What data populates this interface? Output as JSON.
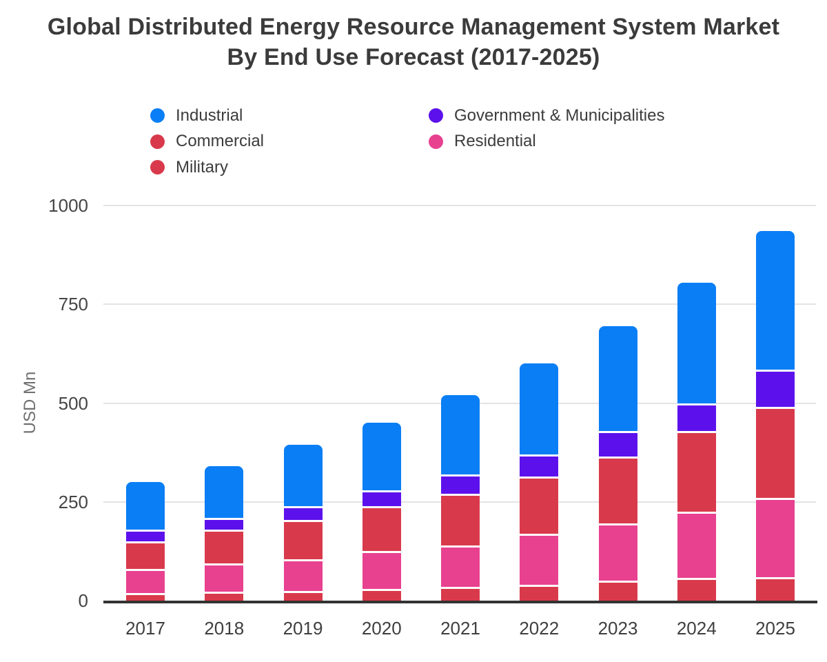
{
  "chart_data": {
    "type": "bar",
    "stacked": true,
    "title": "Global Distributed Energy Resource Management System Market By End Use Forecast (2017-2025)",
    "ylabel": "USD Mn",
    "xlabel": "",
    "ylim": [
      0,
      1000
    ],
    "yticks": [
      0,
      250,
      500,
      750,
      1000
    ],
    "grid": true,
    "legend_position": "top",
    "categories": [
      "2017",
      "2018",
      "2019",
      "2020",
      "2021",
      "2022",
      "2023",
      "2024",
      "2025"
    ],
    "series": [
      {
        "name": "Military",
        "color": "#d93a4b",
        "values": [
          20,
          22,
          25,
          30,
          35,
          40,
          50,
          58,
          60
        ]
      },
      {
        "name": "Residential",
        "color": "#e8418f",
        "values": [
          60,
          73,
          80,
          95,
          105,
          130,
          145,
          167,
          200
        ]
      },
      {
        "name": "Commercial",
        "color": "#d93a4b",
        "values": [
          70,
          85,
          100,
          115,
          130,
          145,
          170,
          205,
          230
        ]
      },
      {
        "name": "Government & Municipalities",
        "color": "#5c11ec",
        "values": [
          30,
          30,
          35,
          40,
          50,
          55,
          65,
          70,
          95
        ]
      },
      {
        "name": "Industrial",
        "color": "#0a7ef5",
        "values": [
          120,
          130,
          155,
          170,
          200,
          230,
          265,
          305,
          350
        ]
      }
    ],
    "legend_columns": [
      [
        {
          "label": "Industrial",
          "color": "#0a7ef5"
        },
        {
          "label": "Commercial",
          "color": "#d93a4b"
        },
        {
          "label": "Military",
          "color": "#d93a4b"
        }
      ],
      [
        {
          "label": "Government & Municipalities",
          "color": "#5c11ec"
        },
        {
          "label": "Residential",
          "color": "#e8418f"
        }
      ]
    ],
    "colors": {
      "industrial": "#0a7ef5",
      "commercial": "#d93a4b",
      "military": "#d93a4b",
      "government_municipalities": "#5c11ec",
      "residential": "#e8418f",
      "gridline": "#e3e3e3",
      "axis_line": "#333333",
      "title_text": "#3b3b3b"
    }
  }
}
